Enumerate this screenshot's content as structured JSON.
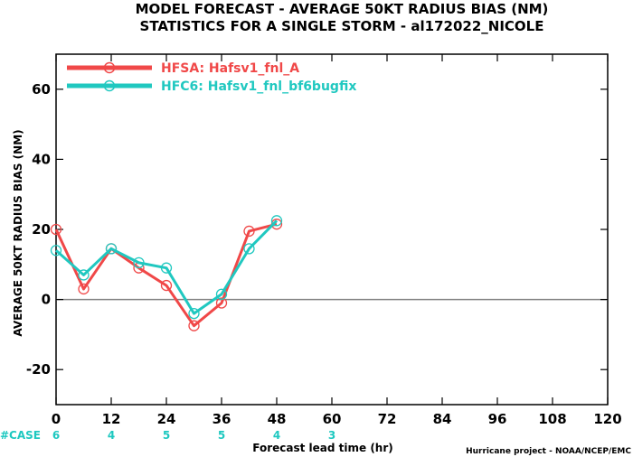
{
  "title_lines": [
    "MODEL FORECAST - AVERAGE 50KT RADIUS BIAS (NM)",
    "STATISTICS FOR A SINGLE STORM - al172022_NICOLE"
  ],
  "credit": "Hurricane project - NOAA/NCEP/EMC",
  "case_label": "#CASE",
  "colors": {
    "case": "#1ec8c0",
    "zero_line": "#808080",
    "axes": "#000000"
  },
  "chart_data": {
    "type": "line",
    "title": "MODEL FORECAST - AVERAGE 50KT RADIUS BIAS (NM)",
    "subtitle": "STATISTICS FOR A SINGLE STORM - al172022_NICOLE",
    "xlabel": "Forecast lead time (hr)",
    "ylabel": "AVERAGE 50KT RADIUS BIAS (NM)",
    "xlim": [
      0,
      120
    ],
    "ylim": [
      -30,
      70
    ],
    "xticks": [
      0,
      12,
      24,
      36,
      48,
      60,
      72,
      84,
      96,
      108,
      120
    ],
    "yticks": [
      -20,
      0,
      20,
      40,
      60
    ],
    "reference_line_y": 0,
    "grid": false,
    "legend_position": "top-left",
    "series": [
      {
        "name": "HFSA: Hafsv1_fnl_A",
        "color": "#f04848",
        "x": [
          0,
          6,
          12,
          18,
          24,
          30,
          36,
          42,
          48
        ],
        "y": [
          20,
          3,
          14.5,
          9,
          4,
          -7.5,
          -1,
          19.5,
          21.5
        ]
      },
      {
        "name": "HFC6: Hafsv1_fnl_bf6bugfix",
        "color": "#20c8c0",
        "x": [
          0,
          6,
          12,
          18,
          24,
          30,
          36,
          42,
          48
        ],
        "y": [
          14,
          7,
          14.5,
          10.5,
          9,
          -4,
          1.5,
          14.5,
          22.5
        ]
      }
    ],
    "cases": [
      {
        "x": 0,
        "n": "6"
      },
      {
        "x": 12,
        "n": "4"
      },
      {
        "x": 24,
        "n": "5"
      },
      {
        "x": 36,
        "n": "5"
      },
      {
        "x": 48,
        "n": "4"
      },
      {
        "x": 60,
        "n": "3"
      }
    ]
  }
}
